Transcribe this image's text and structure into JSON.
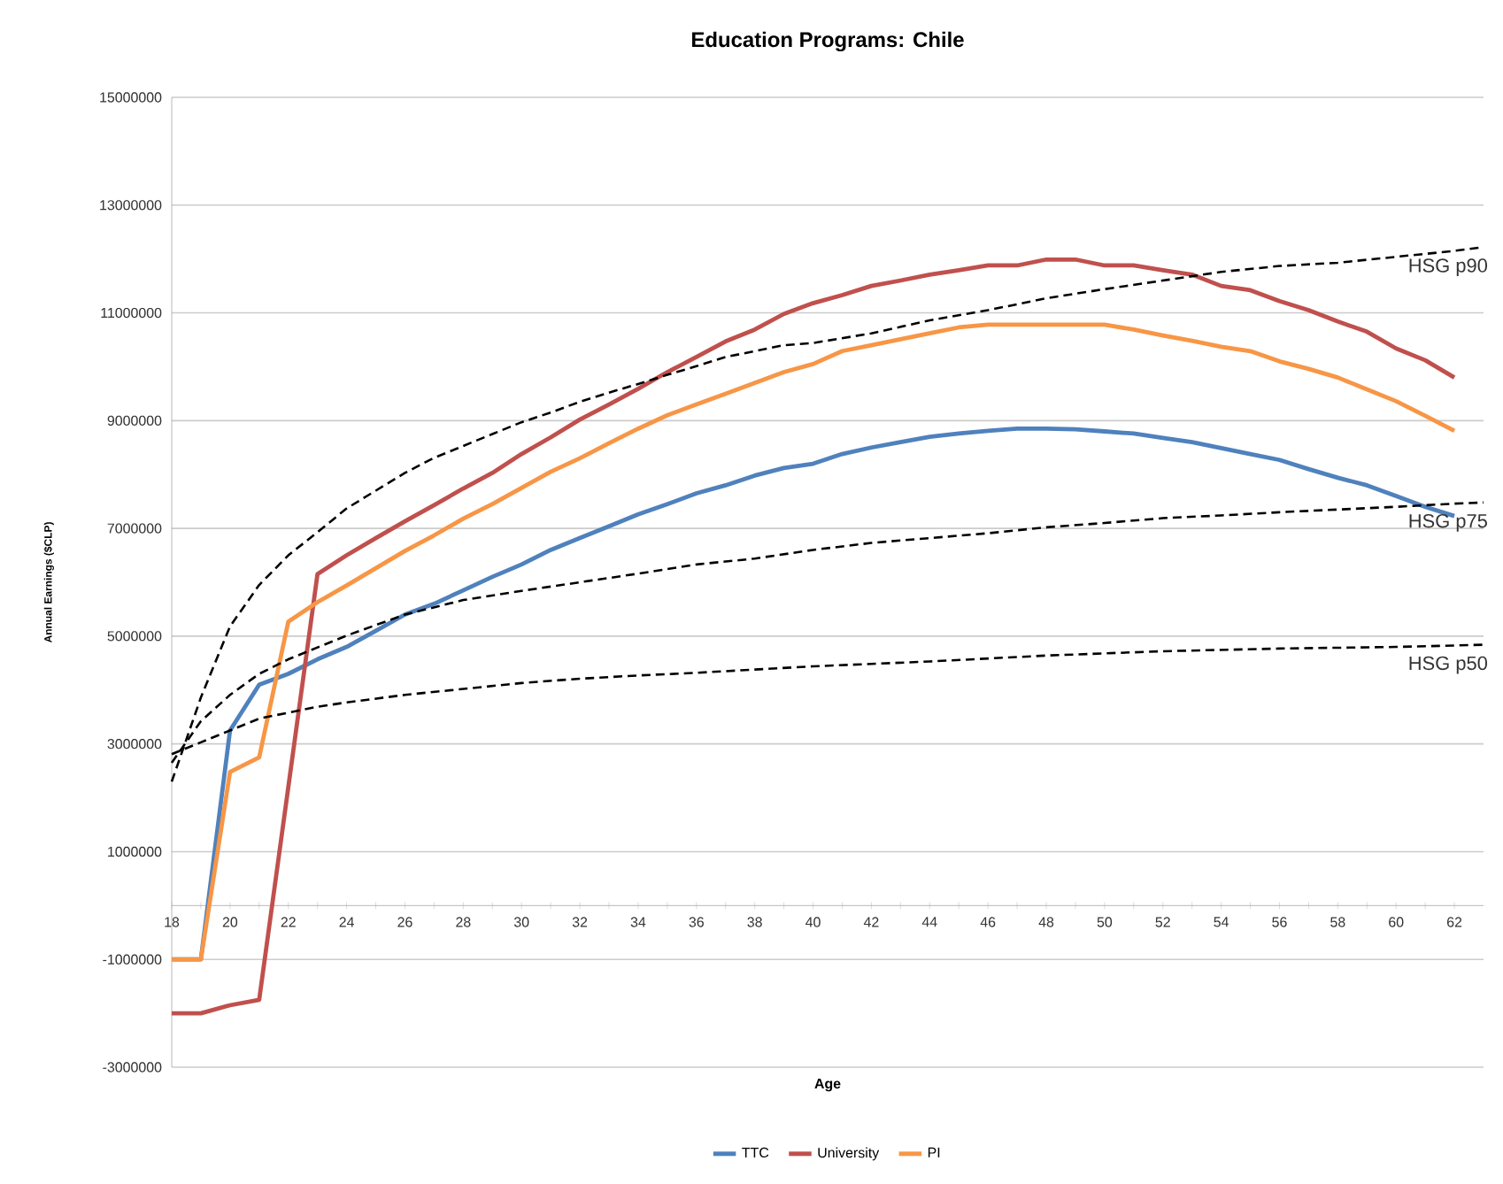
{
  "chart_data": {
    "type": "line",
    "title": "Education Programs: Chile",
    "xlabel": "Age",
    "ylabel": "Annual Earnings ($CLP)",
    "x": [
      18,
      19,
      20,
      21,
      22,
      23,
      24,
      25,
      26,
      27,
      28,
      29,
      30,
      31,
      32,
      33,
      34,
      35,
      36,
      37,
      38,
      39,
      40,
      41,
      42,
      43,
      44,
      45,
      46,
      47,
      48,
      49,
      50,
      51,
      52,
      53,
      54,
      55,
      56,
      57,
      58,
      59,
      60,
      61,
      62
    ],
    "series": [
      {
        "name": "TTC",
        "color": "#4f81bd",
        "values": [
          -1000000,
          -1000000,
          3250000,
          4100000,
          4300000,
          4570000,
          4800000,
          5100000,
          5400000,
          5600000,
          5850000,
          6100000,
          6330000,
          6600000,
          6820000,
          7040000,
          7260000,
          7450000,
          7650000,
          7800000,
          7980000,
          8120000,
          8200000,
          8380000,
          8500000,
          8600000,
          8700000,
          8760000,
          8810000,
          8850000,
          8850000,
          8840000,
          8800000,
          8760000,
          8680000,
          8600000,
          8490000,
          8380000,
          8270000,
          8100000,
          7940000,
          7800000,
          7600000,
          7400000,
          7230000
        ]
      },
      {
        "name": "University",
        "color": "#c0504d",
        "values": [
          -2000000,
          -2000000,
          -1850000,
          -1750000,
          2200000,
          6150000,
          6500000,
          6820000,
          7130000,
          7430000,
          7740000,
          8030000,
          8380000,
          8690000,
          9020000,
          9300000,
          9590000,
          9900000,
          10180000,
          10470000,
          10690000,
          10980000,
          11180000,
          11330000,
          11500000,
          11600000,
          11710000,
          11790000,
          11880000,
          11880000,
          11990000,
          11990000,
          11880000,
          11880000,
          11790000,
          11710000,
          11500000,
          11420000,
          11220000,
          11050000,
          10840000,
          10650000,
          10340000,
          10120000,
          9800000
        ]
      },
      {
        "name": "PI",
        "color": "#f79646",
        "values": [
          -1000000,
          -1000000,
          2480000,
          2750000,
          5270000,
          5630000,
          5940000,
          6260000,
          6580000,
          6870000,
          7180000,
          7450000,
          7750000,
          8050000,
          8300000,
          8580000,
          8850000,
          9100000,
          9300000,
          9500000,
          9700000,
          9900000,
          10050000,
          10290000,
          10400000,
          10510000,
          10620000,
          10730000,
          10780000,
          10780000,
          10780000,
          10780000,
          10780000,
          10690000,
          10580000,
          10480000,
          10370000,
          10290000,
          10100000,
          9960000,
          9800000,
          9580000,
          9360000,
          9090000,
          8810000
        ]
      },
      {
        "name": "HSG p90",
        "color": "#000000",
        "line_style": "dashed",
        "x": [
          18,
          19,
          20,
          21,
          22,
          23,
          24,
          25,
          26,
          27,
          28,
          29,
          30,
          31,
          32,
          33,
          34,
          35,
          36,
          37,
          38,
          39,
          40,
          42,
          44,
          46,
          48,
          50,
          52,
          54,
          56,
          58,
          60,
          62,
          63
        ],
        "values": [
          2300000,
          3860000,
          5180000,
          5950000,
          6500000,
          6930000,
          7370000,
          7700000,
          8030000,
          8310000,
          8530000,
          8750000,
          8970000,
          9150000,
          9350000,
          9520000,
          9680000,
          9850000,
          10010000,
          10180000,
          10290000,
          10400000,
          10440000,
          10620000,
          10860000,
          11050000,
          11270000,
          11440000,
          11600000,
          11760000,
          11870000,
          11930000,
          12040000,
          12150000,
          12220000
        ]
      },
      {
        "name": "HSG p75",
        "color": "#000000",
        "line_style": "dashed",
        "x": [
          18,
          19,
          20,
          21,
          22,
          23,
          24,
          26,
          28,
          30,
          32,
          34,
          36,
          38,
          40,
          42,
          44,
          46,
          48,
          50,
          52,
          54,
          56,
          58,
          60,
          62,
          63
        ],
        "values": [
          2650000,
          3420000,
          3910000,
          4300000,
          4570000,
          4790000,
          5010000,
          5400000,
          5670000,
          5840000,
          6000000,
          6160000,
          6330000,
          6440000,
          6600000,
          6730000,
          6820000,
          6910000,
          7020000,
          7100000,
          7190000,
          7240000,
          7300000,
          7350000,
          7400000,
          7460000,
          7480000
        ]
      },
      {
        "name": "HSG p50",
        "color": "#000000",
        "line_style": "dashed",
        "x": [
          18,
          19,
          20,
          21,
          22,
          23,
          24,
          26,
          28,
          30,
          32,
          34,
          36,
          38,
          40,
          44,
          48,
          52,
          56,
          60,
          63
        ],
        "values": [
          2810000,
          3030000,
          3250000,
          3470000,
          3580000,
          3690000,
          3770000,
          3910000,
          4020000,
          4130000,
          4210000,
          4270000,
          4320000,
          4380000,
          4440000,
          4530000,
          4640000,
          4720000,
          4770000,
          4800000,
          4840000
        ]
      }
    ],
    "xlim": [
      18,
      63
    ],
    "xticks": [
      18,
      20,
      22,
      24,
      26,
      28,
      30,
      32,
      34,
      36,
      38,
      40,
      42,
      44,
      46,
      48,
      50,
      52,
      54,
      56,
      58,
      60,
      62
    ],
    "ylim": [
      -3000000,
      15000000
    ],
    "yticks": [
      -3000000,
      -1000000,
      1000000,
      3000000,
      5000000,
      7000000,
      9000000,
      11000000,
      13000000,
      15000000
    ],
    "grid": "y",
    "legend": "bottom",
    "marker": "none"
  }
}
